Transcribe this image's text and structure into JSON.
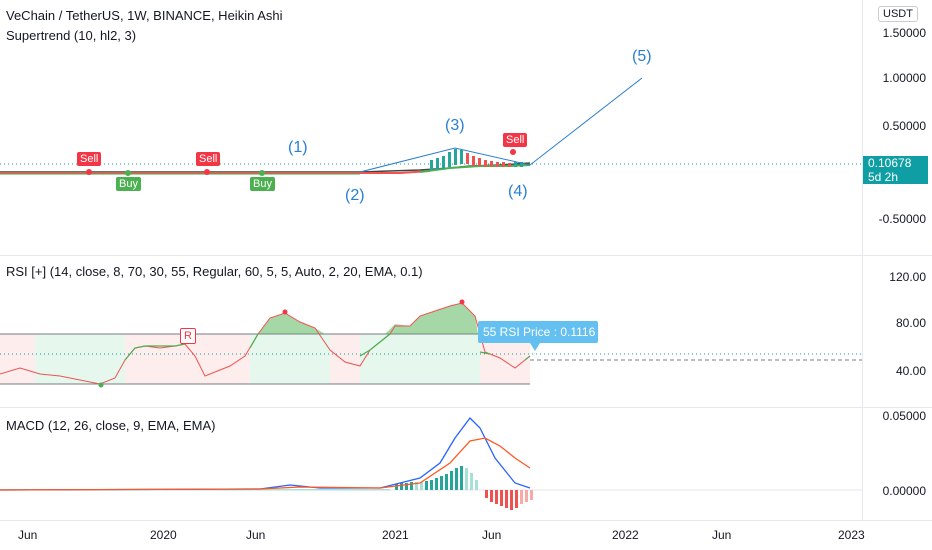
{
  "main": {
    "title": "VeChain / TetherUS, 1W, BINANCE, Heikin Ashi",
    "indicator": "Supertrend (10, hl2, 3)",
    "currency_button": "USDT",
    "price_axis": [
      "1.50000",
      "1.00000",
      "0.50000",
      "-0.50000"
    ],
    "last_price": "0.10678",
    "countdown": "5d 2h",
    "signals": [
      {
        "label": "Sell",
        "type": "sell"
      },
      {
        "label": "Buy",
        "type": "buy"
      },
      {
        "label": "Sell",
        "type": "sell"
      },
      {
        "label": "Buy",
        "type": "buy"
      },
      {
        "label": "Sell",
        "type": "sell"
      }
    ],
    "waves": [
      "(1)",
      "(2)",
      "(3)",
      "(4)",
      "(5)"
    ]
  },
  "rsi": {
    "legend": "RSI [+] (14, close, 8, 70, 30, 55, Regular, 60, 5, 5, Auto, 2, 20, EMA, 0.1)",
    "axis": [
      "120.00",
      "80.00",
      "40.00"
    ],
    "tooltip": "55 RSI Price : 0.1116",
    "divergence_label": "R"
  },
  "macd": {
    "legend": "MACD (12, 26, close, 9, EMA, EMA)",
    "axis": [
      "0.05000",
      "0.00000"
    ]
  },
  "time_axis": [
    "Jun",
    "2020",
    "Jun",
    "2021",
    "Jun",
    "2022",
    "Jun",
    "2023"
  ],
  "colors": {
    "up": "#26a69a",
    "down": "#ef5350",
    "buy": "#4caf50",
    "sell": "#f23645",
    "annotation": "#2a7fd1",
    "badge": "#0f9ea3"
  }
}
